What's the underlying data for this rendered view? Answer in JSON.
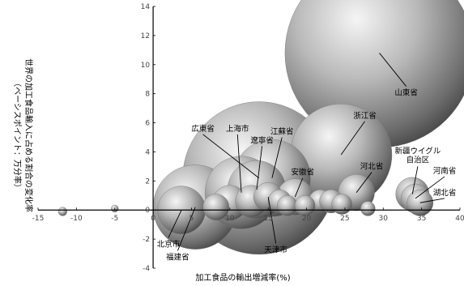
{
  "chart_data": {
    "type": "scatter",
    "subtype": "bubble",
    "xlabel": "加工食品の輸出増減率(%)",
    "ylabel": "世界の加工食品輸入に占める割合の変化率",
    "ylabel_sub": "（ベーシスポイント：万分率）",
    "xlim": [
      -15,
      40
    ],
    "ylim": [
      -4,
      14
    ],
    "xticks": [
      -15,
      -10,
      -5,
      0,
      5,
      10,
      15,
      20,
      25,
      30,
      35,
      40
    ],
    "yticks": [
      -4,
      -2,
      0,
      2,
      4,
      6,
      8,
      10,
      12,
      14
    ],
    "grid": false,
    "points": [
      {
        "name": "山東省",
        "x": 29.5,
        "y": 10.8,
        "size": 13.0,
        "label_x": 33.0,
        "label_y": 8.5,
        "labeled": true
      },
      {
        "name": "広東省",
        "x": 13.8,
        "y": 2.2,
        "size": 10.5,
        "label_x": 6.5,
        "label_y": 5.2,
        "labeled": true
      },
      {
        "name": "上海市",
        "x": 11.5,
        "y": 1.2,
        "size": 5.0,
        "label_x": 11.0,
        "label_y": 5.2,
        "labeled": true
      },
      {
        "name": "遼寧省",
        "x": 13.5,
        "y": 1.4,
        "size": 4.0,
        "label_x": 14.2,
        "label_y": 4.4,
        "labeled": true
      },
      {
        "name": "江蘇省",
        "x": 15.5,
        "y": 2.2,
        "size": 5.3,
        "label_x": 16.8,
        "label_y": 5.0,
        "labeled": true
      },
      {
        "name": "浙江省",
        "x": 24.5,
        "y": 3.8,
        "size": 7.0,
        "label_x": 27.6,
        "label_y": 6.1,
        "labeled": true
      },
      {
        "name": "安徽省",
        "x": 18.5,
        "y": 0.9,
        "size": 2.5,
        "label_x": 19.5,
        "label_y": 2.2,
        "labeled": true
      },
      {
        "name": "河北省",
        "x": 26.5,
        "y": 1.2,
        "size": 2.5,
        "label_x": 28.5,
        "label_y": 2.6,
        "labeled": true
      },
      {
        "name": "新疆ウイグル自治区",
        "x": 33.8,
        "y": 1.1,
        "size": 2.3,
        "label_x": 34.5,
        "label_y": 3.0,
        "labeled": true
      },
      {
        "name": "河南省",
        "x": 34.2,
        "y": 0.8,
        "size": 2.0,
        "label_x": 38.0,
        "label_y": 2.3,
        "labeled": true
      },
      {
        "name": "湖北省",
        "x": 34.8,
        "y": 0.5,
        "size": 1.8,
        "label_x": 38.0,
        "label_y": 0.8,
        "labeled": true
      },
      {
        "name": "北京市",
        "x": 3.7,
        "y": 0.0,
        "size": 3.3,
        "label_x": 2.0,
        "label_y": -1.9,
        "labeled": true
      },
      {
        "name": "福建省",
        "x": 5.5,
        "y": 0.2,
        "size": 5.8,
        "label_x": 3.2,
        "label_y": -2.8,
        "labeled": true
      },
      {
        "name": "天津市",
        "x": 15.0,
        "y": 0.9,
        "size": 2.0,
        "label_x": 16.0,
        "label_y": -2.3,
        "labeled": true
      },
      {
        "name": "",
        "x": 8.2,
        "y": 0.2,
        "size": 1.8,
        "labeled": false
      },
      {
        "name": "",
        "x": 10.0,
        "y": 0.5,
        "size": 2.4,
        "labeled": false
      },
      {
        "name": "",
        "x": 12.8,
        "y": 0.6,
        "size": 2.2,
        "labeled": false
      },
      {
        "name": "",
        "x": 16.5,
        "y": 0.6,
        "size": 1.6,
        "labeled": false
      },
      {
        "name": "",
        "x": 17.5,
        "y": 0.3,
        "size": 1.4,
        "labeled": false
      },
      {
        "name": "",
        "x": 19.8,
        "y": 0.3,
        "size": 1.4,
        "labeled": false
      },
      {
        "name": "",
        "x": 21.8,
        "y": 0.6,
        "size": 1.6,
        "labeled": false
      },
      {
        "name": "",
        "x": 23.2,
        "y": 0.6,
        "size": 1.6,
        "labeled": false
      },
      {
        "name": "",
        "x": 24.6,
        "y": 0.4,
        "size": 1.4,
        "labeled": false
      },
      {
        "name": "",
        "x": 28.0,
        "y": 0.1,
        "size": 1.0,
        "labeled": false
      },
      {
        "name": "",
        "x": -11.8,
        "y": -0.1,
        "size": 0.6,
        "labeled": false
      },
      {
        "name": "",
        "x": -5.0,
        "y": 0.1,
        "size": 0.5,
        "labeled": false
      }
    ]
  }
}
